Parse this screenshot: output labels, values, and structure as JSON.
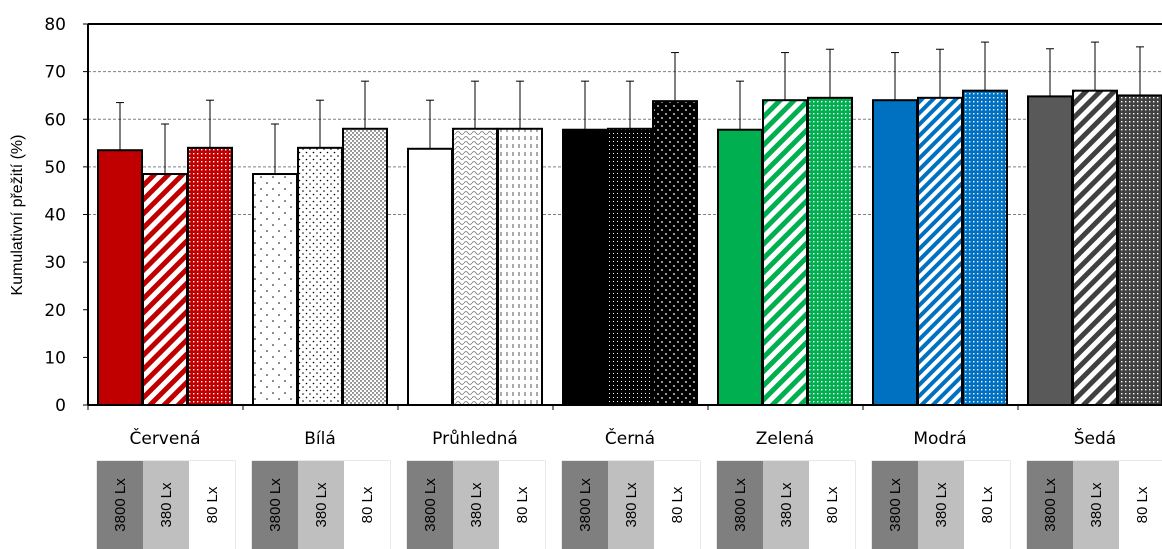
{
  "chart_data": {
    "type": "bar",
    "ylabel": "Kumulativní přežití (%)",
    "xlabel": "",
    "ylim": [
      0,
      80
    ],
    "yticks": [
      0,
      10,
      20,
      30,
      40,
      50,
      60,
      70,
      80
    ],
    "grid": "horizontal dashed at 40-70",
    "categories": [
      "Červená",
      "Bílá",
      "Průhledná",
      "Černá",
      "Zelená",
      "Modrá",
      "Šedá"
    ],
    "sub_labels": [
      "3800 Lx",
      "380 Lx",
      "80 Lx"
    ],
    "series": [
      {
        "lux": "3800 Lx",
        "values": [
          53.5,
          48.5,
          53.8,
          57.8,
          57.8,
          64.0,
          64.8
        ],
        "errors": [
          10.0,
          10.5,
          10.2,
          10.2,
          10.2,
          10.0,
          10.0
        ]
      },
      {
        "lux": "380 Lx",
        "values": [
          48.5,
          54.0,
          58.0,
          58.0,
          64.0,
          64.5,
          66.0
        ],
        "errors": [
          10.5,
          10.0,
          10.0,
          10.0,
          10.0,
          10.2,
          10.2
        ]
      },
      {
        "lux": "80 Lx",
        "values": [
          54.0,
          58.0,
          58.0,
          63.8,
          64.5,
          66.0,
          65.0
        ],
        "errors": [
          10.0,
          10.0,
          10.0,
          10.2,
          10.2,
          10.2,
          10.2
        ]
      }
    ],
    "colors": {
      "Červená": "#c00000",
      "Bílá": "#ffffff",
      "Průhledná": "#ffffff",
      "Černá": "#000000",
      "Zelená": "#00b050",
      "Modrá": "#0070c0",
      "Šedá": "#595959"
    },
    "lux_box_colors": [
      "#7f7f7f",
      "#bfbfbf",
      "#ffffff"
    ]
  }
}
